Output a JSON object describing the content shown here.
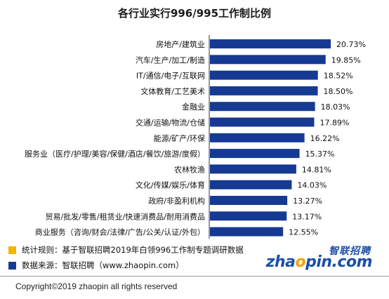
{
  "chart_data": {
    "type": "bar",
    "orientation": "horizontal",
    "title": "各行业实行996/995工作制比例",
    "categories": [
      "房地产/建筑业",
      "汽车/生产/加工/制造",
      "IT/通信/电子/互联网",
      "文体教育/工艺美术",
      "金融业",
      "交通/运输/物流/仓储",
      "能源/矿产/环保",
      "服务业（医疗/护理/美容/保健/酒店/餐饮/旅游/度假）",
      "农林牧渔",
      "文化/传媒/娱乐/体育",
      "政府/非盈利机构",
      "贸易/批发/零售/租赁业/快速消费品/耐用消费品",
      "商业服务（咨询/财会/法律/广告/公关/认证/外包）"
    ],
    "values": [
      20.73,
      19.85,
      18.52,
      18.5,
      18.03,
      17.89,
      16.22,
      15.37,
      14.81,
      14.03,
      13.27,
      13.17,
      12.55
    ],
    "value_labels": [
      "20.73%",
      "19.85%",
      "18.52%",
      "18.50%",
      "18.03%",
      "17.89%",
      "16.22%",
      "15.37%",
      "14.81%",
      "14.03%",
      "13.27%",
      "13.17%",
      "12.55%"
    ],
    "xlim": [
      0,
      22
    ],
    "grid": false,
    "bar_color": "#163a93"
  },
  "footnotes": {
    "rule_label": "统计规则：基于智联招聘2019年白领996工作制专题调研数据",
    "source_label": "数据来源：智联招聘（www.zhaopin.com）",
    "rule_color": "#f3b500",
    "source_color": "#163a93"
  },
  "brand": {
    "cn": "智联招聘",
    "en_pre": "zha",
    "en_o": "o",
    "en_post": "pin.com"
  },
  "copyright": "Copyright©2019 zhaopin all rights reserved"
}
